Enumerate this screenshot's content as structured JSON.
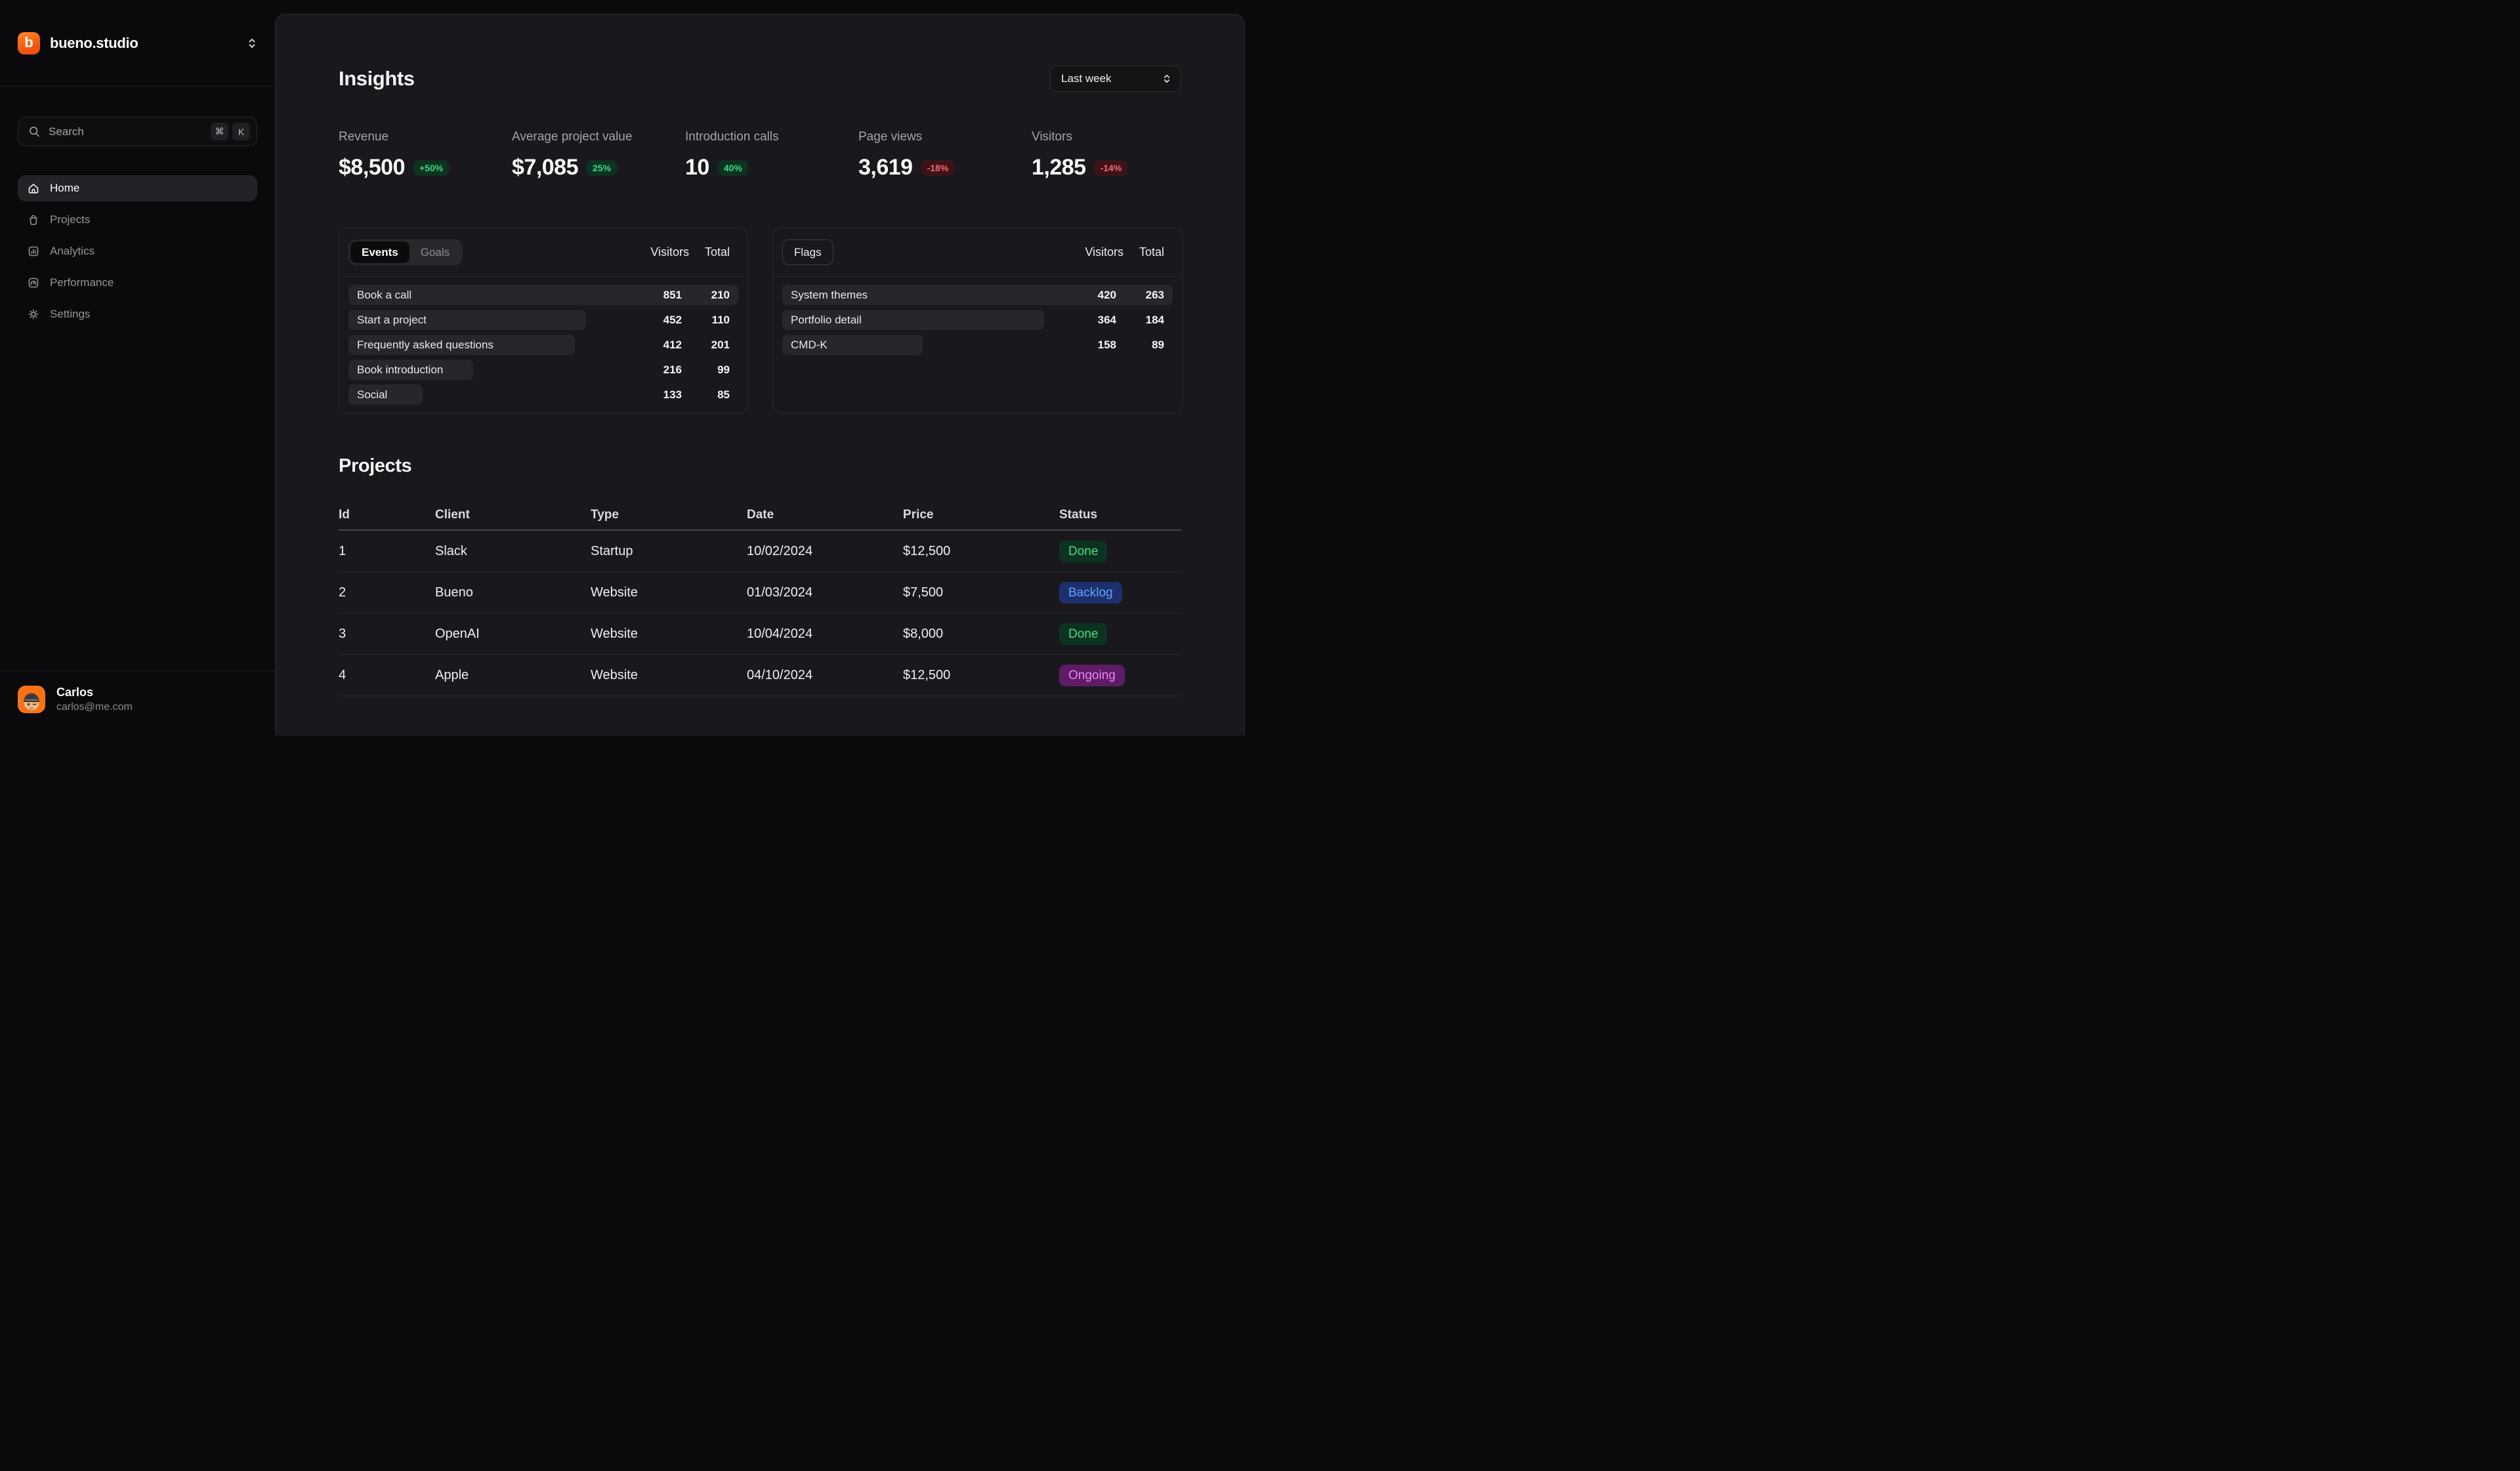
{
  "sidebar": {
    "brand": {
      "name": "bueno.studio",
      "logo_letter": "b"
    },
    "search": {
      "placeholder": "Search",
      "shortcut_keys": [
        "⌘",
        "K"
      ]
    },
    "nav": [
      {
        "label": "Home",
        "icon": "home-icon",
        "active": true
      },
      {
        "label": "Projects",
        "icon": "bag-icon",
        "active": false
      },
      {
        "label": "Analytics",
        "icon": "bar-chart-icon",
        "active": false
      },
      {
        "label": "Performance",
        "icon": "gauge-icon",
        "active": false
      },
      {
        "label": "Settings",
        "icon": "gear-icon",
        "active": false
      }
    ],
    "user": {
      "name": "Carlos",
      "email": "carlos@me.com"
    }
  },
  "header": {
    "title": "Insights",
    "range_selector_value": "Last week"
  },
  "kpis": [
    {
      "label": "Revenue",
      "value": "$8,500",
      "delta": "+50%",
      "trend": "up"
    },
    {
      "label": "Average project value",
      "value": "$7,085",
      "delta": "25%",
      "trend": "up"
    },
    {
      "label": "Introduction calls",
      "value": "10",
      "delta": "40%",
      "trend": "up"
    },
    {
      "label": "Page views",
      "value": "3,619",
      "delta": "-18%",
      "trend": "down"
    },
    {
      "label": "Visitors",
      "value": "1,285",
      "delta": "-14%",
      "trend": "down"
    }
  ],
  "events_panel": {
    "tabs": [
      {
        "label": "Events",
        "active": true
      },
      {
        "label": "Goals",
        "active": false
      }
    ],
    "columns": {
      "visitors": "Visitors",
      "total": "Total"
    },
    "rows": [
      {
        "label": "Book a call",
        "visitors": "851",
        "total": "210",
        "bar_pct": 100
      },
      {
        "label": "Start a project",
        "visitors": "452",
        "total": "110",
        "bar_pct": 61
      },
      {
        "label": "Frequently asked questions",
        "visitors": "412",
        "total": "201",
        "bar_pct": 58
      },
      {
        "label": "Book introduction",
        "visitors": "216",
        "total": "99",
        "bar_pct": 32
      },
      {
        "label": "Social",
        "visitors": "133",
        "total": "85",
        "bar_pct": 19
      }
    ]
  },
  "flags_panel": {
    "title": "Flags",
    "columns": {
      "visitors": "Visitors",
      "total": "Total"
    },
    "rows": [
      {
        "label": "System themes",
        "visitors": "420",
        "total": "263",
        "bar_pct": 100
      },
      {
        "label": "Portfolio detail",
        "visitors": "364",
        "total": "184",
        "bar_pct": 67
      },
      {
        "label": "CMD-K",
        "visitors": "158",
        "total": "89",
        "bar_pct": 36
      }
    ]
  },
  "projects": {
    "title": "Projects",
    "columns": [
      "Id",
      "Client",
      "Type",
      "Date",
      "Price",
      "Status"
    ],
    "rows": [
      {
        "id": "1",
        "client": "Slack",
        "type": "Startup",
        "date": "10/02/2024",
        "price": "$12,500",
        "status": "Done",
        "status_kind": "done"
      },
      {
        "id": "2",
        "client": "Bueno",
        "type": "Website",
        "date": "01/03/2024",
        "price": "$7,500",
        "status": "Backlog",
        "status_kind": "backlog"
      },
      {
        "id": "3",
        "client": "OpenAI",
        "type": "Website",
        "date": "10/04/2024",
        "price": "$8,000",
        "status": "Done",
        "status_kind": "done"
      },
      {
        "id": "4",
        "client": "Apple",
        "type": "Website",
        "date": "04/10/2024",
        "price": "$12,500",
        "status": "Ongoing",
        "status_kind": "ongoing"
      }
    ]
  },
  "colors": {
    "accent_orange": "#f2520e",
    "panel_bg": "#19191d",
    "sidebar_bg": "#0a0a0c",
    "positive_badge_bg": "#0d3220",
    "positive_badge_text": "#3fd68a",
    "negative_badge_bg": "#3d1318",
    "negative_badge_text": "#ee6b6f",
    "status_done_bg": "#0c3320",
    "status_done_text": "#4ade80",
    "status_backlog_bg": "#1e2f6e",
    "status_backlog_text": "#60a5fa",
    "status_ongoing_bg": "#5e1b66",
    "status_ongoing_text": "#ea85f1"
  }
}
